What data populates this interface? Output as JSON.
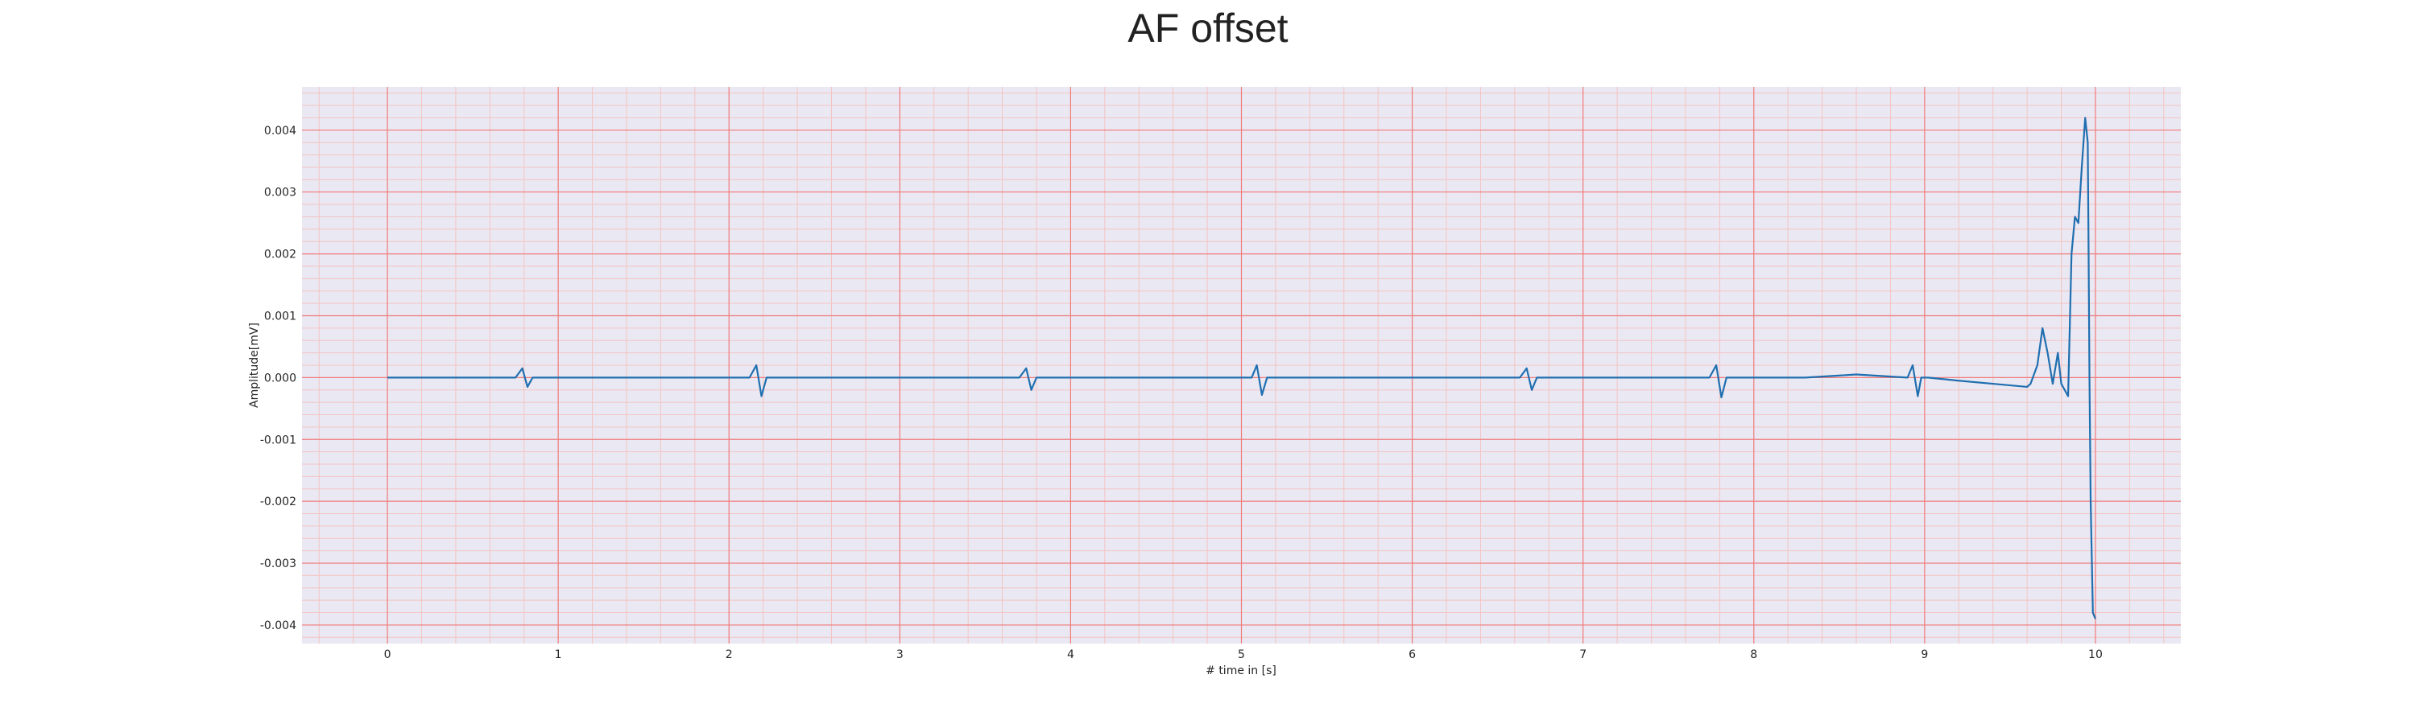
{
  "chart_data": {
    "type": "line",
    "title": "AF offset",
    "xlabel": "# time in [s]",
    "ylabel": "Amplitude[mV]",
    "xlim": [
      -0.5,
      10.5
    ],
    "ylim": [
      -0.0043,
      0.0047
    ],
    "xticks": [
      0,
      1,
      2,
      3,
      4,
      5,
      6,
      7,
      8,
      9,
      10
    ],
    "xtick_labels": [
      "0",
      "1",
      "2",
      "3",
      "4",
      "5",
      "6",
      "7",
      "8",
      "9",
      "10"
    ],
    "yticks": [
      0.004,
      0.003,
      0.002,
      0.001,
      0.0,
      -0.001,
      -0.002,
      -0.003,
      -0.004
    ],
    "ytick_labels": [
      "0.004",
      "0.003",
      "0.002",
      "0.001",
      "0.000",
      "-0.001",
      "-0.002",
      "-0.003",
      "-0.004"
    ],
    "grid": "on",
    "legend": "none",
    "colors": {
      "line": "#1f6fb0",
      "plot_background": "#eae8f2",
      "major_grid": "#f07a7a",
      "minor_grid": "#f4c4c4"
    },
    "series": [
      {
        "x": [
          0.0,
          0.3,
          0.6,
          0.75,
          0.79,
          0.82,
          0.85,
          0.9,
          1.2,
          1.6,
          2.0,
          2.12,
          2.16,
          2.19,
          2.22,
          2.27,
          2.5,
          3.0,
          3.5,
          3.7,
          3.74,
          3.77,
          3.8,
          3.85,
          4.2,
          4.6,
          5.0,
          5.06,
          5.09,
          5.12,
          5.15,
          5.2,
          5.6,
          6.0,
          6.4,
          6.63,
          6.67,
          6.7,
          6.73,
          6.78,
          7.2,
          7.6,
          7.74,
          7.78,
          7.81,
          7.84,
          7.9,
          8.3,
          8.6,
          8.9,
          8.93,
          8.96,
          8.98,
          9.02,
          9.2,
          9.4,
          9.6,
          9.62,
          9.66,
          9.69,
          9.72,
          9.75,
          9.78,
          9.8,
          9.82,
          9.84,
          9.86,
          9.88,
          9.9,
          9.92,
          9.94,
          9.955,
          9.96,
          9.965,
          9.972,
          9.985,
          10.0
        ],
        "y": [
          0.0,
          0.0,
          0.0,
          0.0,
          0.00015,
          -0.00015,
          0.0,
          0.0,
          0.0,
          0.0,
          0.0,
          0.0,
          0.0002,
          -0.0003,
          0.0,
          0.0,
          0.0,
          0.0,
          0.0,
          0.0,
          0.00015,
          -0.0002,
          0.0,
          0.0,
          0.0,
          0.0,
          0.0,
          0.0,
          0.0002,
          -0.00028,
          0.0,
          0.0,
          0.0,
          0.0,
          0.0,
          0.0,
          0.00015,
          -0.0002,
          0.0,
          0.0,
          0.0,
          0.0,
          0.0,
          0.0002,
          -0.00032,
          0.0,
          0.0,
          0.0,
          5e-05,
          0.0,
          0.0002,
          -0.0003,
          0.0,
          0.0,
          -5e-05,
          -0.0001,
          -0.00015,
          -0.0001,
          0.0002,
          0.0008,
          0.0004,
          -0.0001,
          0.0004,
          -0.0001,
          -0.0002,
          -0.0003,
          0.002,
          0.0026,
          0.0025,
          0.0034,
          0.0042,
          0.0038,
          0.002,
          0.0,
          -0.002,
          -0.0038,
          -0.0039
        ]
      }
    ]
  }
}
